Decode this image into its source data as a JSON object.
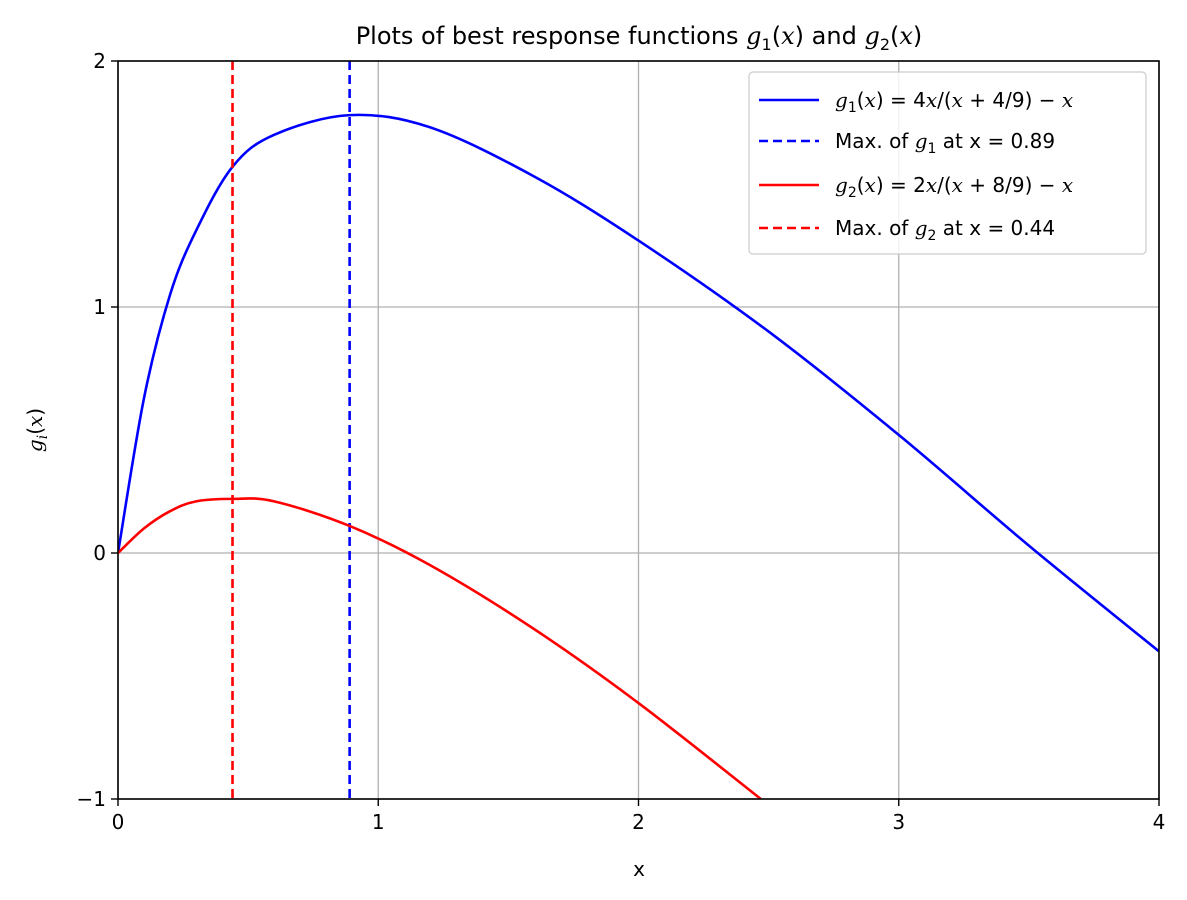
{
  "chart_data": {
    "type": "line",
    "title": "Plots of best response functions g₁(x) and g₂(x)",
    "xlabel": "x",
    "ylabel": "gᵢ(x)",
    "xlim": [
      0,
      4
    ],
    "ylim": [
      -1,
      2
    ],
    "xticks": [
      0,
      1,
      2,
      3,
      4
    ],
    "yticks": [
      -1,
      0,
      1,
      2
    ],
    "xtick_labels": [
      "0",
      "1",
      "2",
      "3",
      "4"
    ],
    "ytick_labels": [
      "−1",
      "0",
      "1",
      "2"
    ],
    "grid": true,
    "legend_position": "top-right",
    "series": [
      {
        "name": "g₁(x) = 4x/(x + 4/9) − x",
        "style": "solid",
        "color": "#0000ff",
        "x": [
          0,
          0.1,
          0.2,
          0.3,
          0.44,
          0.6,
          0.89,
          1.2,
          1.6,
          2.0,
          2.5,
          3.0,
          3.5,
          4.0
        ],
        "y": [
          0,
          0.63,
          1.05,
          1.31,
          1.57,
          1.7,
          1.78,
          1.73,
          1.53,
          1.27,
          0.9,
          0.48,
          0.03,
          -0.4
        ]
      },
      {
        "name": "Max. of g₁ at x = 0.89",
        "style": "dashed",
        "color": "#0000ff",
        "vline_x": 0.89
      },
      {
        "name": "g₂(x) = 2x/(x + 8/9) − x",
        "style": "solid",
        "color": "#ff0000",
        "x": [
          0,
          0.1,
          0.2,
          0.3,
          0.44,
          0.6,
          0.89,
          1.2,
          1.6,
          2.0,
          2.47
        ],
        "y": [
          0,
          0.1,
          0.17,
          0.21,
          0.22,
          0.21,
          0.11,
          -0.05,
          -0.31,
          -0.61,
          -1.0
        ]
      },
      {
        "name": "Max. of g₂ at x = 0.44",
        "style": "dashed",
        "color": "#ff0000",
        "vline_x": 0.44
      }
    ]
  }
}
